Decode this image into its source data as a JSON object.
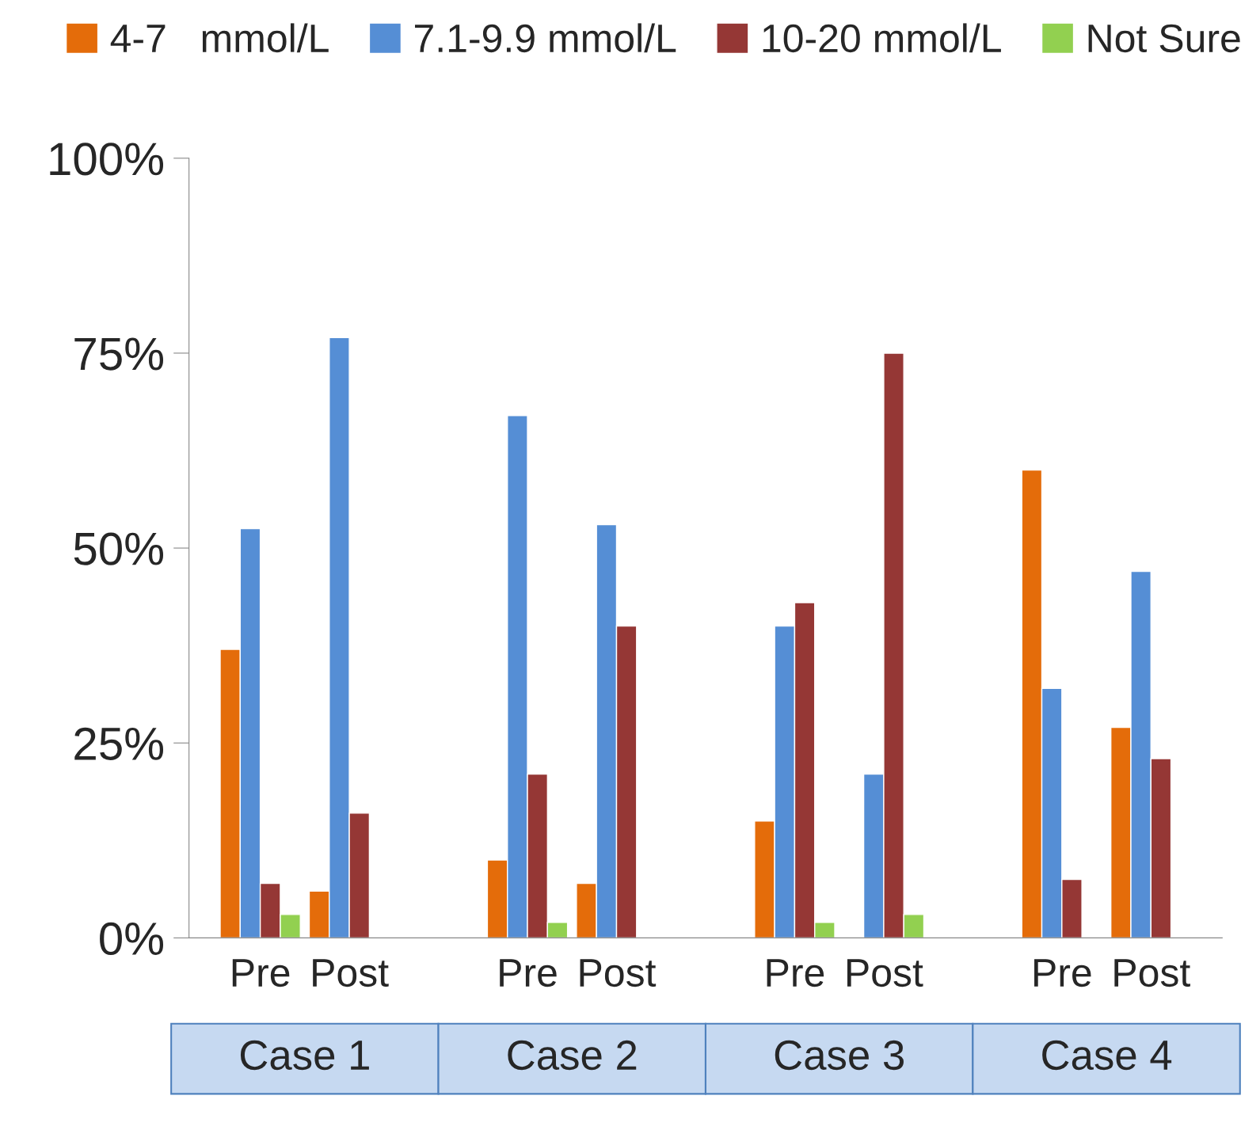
{
  "chart_data": {
    "type": "bar",
    "categories": [
      "Pre",
      "Post",
      "Pre",
      "Post",
      "Pre",
      "Post",
      "Pre",
      "Post"
    ],
    "series": [
      {
        "name": "4-7   mmol/L",
        "color": "#e46c0a",
        "values": [
          37,
          6,
          10,
          7,
          15,
          null,
          60,
          27
        ]
      },
      {
        "name": "7.1-9.9 mmol/L",
        "color": "#558ed5",
        "values": [
          52.5,
          77,
          67,
          53,
          40,
          21,
          32,
          47
        ]
      },
      {
        "name": "10-20 mmol/L",
        "color": "#953735",
        "values": [
          7,
          16,
          21,
          40,
          43,
          75,
          7.5,
          23
        ]
      },
      {
        "name": "Not Sure",
        "color": "#92d050",
        "values": [
          3,
          null,
          2,
          null,
          2,
          3,
          null,
          null
        ]
      }
    ],
    "annotations": [
      "Case 1",
      "Case 2",
      "Case 3",
      "Case 4"
    ],
    "ylim": [
      0,
      100
    ],
    "yticks": [
      {
        "value": 0,
        "label": "0%"
      },
      {
        "value": 25,
        "label": "25%"
      },
      {
        "value": 50,
        "label": "50%"
      },
      {
        "value": 75,
        "label": "75%"
      },
      {
        "value": 100,
        "label": "100%"
      }
    ],
    "grid": false,
    "legend": "top"
  }
}
